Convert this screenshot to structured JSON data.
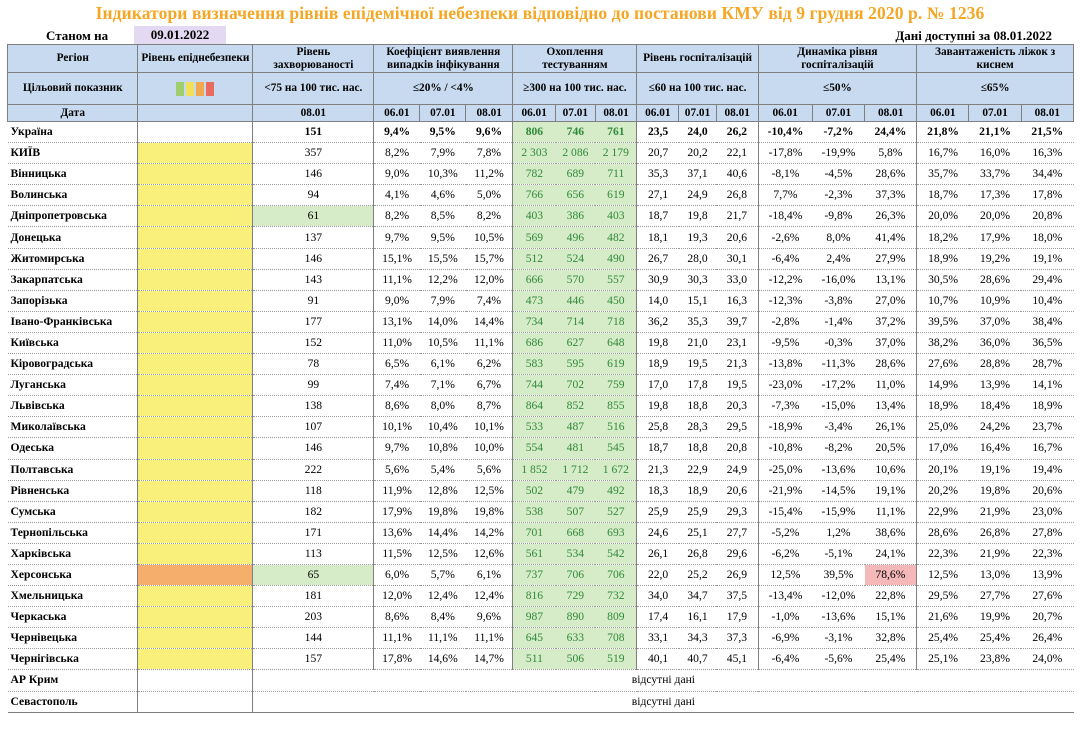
{
  "title": "Індикатори визначення рівнів епідемічної небезпеки відповідно до постанови КМУ від 9 грудня 2020 р. № 1236",
  "as_of_label": "Станом на",
  "as_of_date": "09.01.2022",
  "available_label": "Дані доступні за",
  "available_date": "08.01.2022",
  "headers": {
    "region": "Регіон",
    "level": "Рівень епіднебезпеки",
    "incidence": "Рівень захворюваності",
    "detection": "Коефіцієнт виявлення випадків інфікування",
    "testing": "Охоплення тестуванням",
    "hosp": "Рівень госпіталізацій",
    "hosp_dyn": "Динаміка рівня госпіталізацій",
    "oxygen": "Завантаженість ліжок з киснем"
  },
  "target": {
    "label": "Цільовий показник",
    "incidence": "<75 на 100 тис. нас.",
    "detection": "≤20% / <4%",
    "testing": "≥300 на 100 тис. нас.",
    "hosp": "≤60 на 100 тис. нас.",
    "hosp_dyn": "≤50%",
    "oxygen": "≤65%",
    "legend_colors": [
      "#9fcf6d",
      "#f3e05a",
      "#f2a84c",
      "#e96b5f"
    ]
  },
  "date_row": {
    "label": "Дата",
    "incidence": "08.01",
    "d1": "06.01",
    "d2": "07.01",
    "d3": "08.01"
  },
  "rows": [
    {
      "region": "Україна",
      "inc": "151",
      "det": [
        "9,4%",
        "9,5%",
        "9,6%"
      ],
      "test": [
        "806",
        "746",
        "761"
      ],
      "hosp": [
        "23,5",
        "24,0",
        "26,2"
      ],
      "dyn": [
        "-10,4%",
        "-7,2%",
        "24,4%"
      ],
      "oxy": [
        "21,8%",
        "21,1%",
        "21,5%"
      ]
    },
    {
      "region": "КИЇВ",
      "inc": "357",
      "det": [
        "8,2%",
        "7,9%",
        "7,8%"
      ],
      "test": [
        "2 303",
        "2 086",
        "2 179"
      ],
      "hosp": [
        "20,7",
        "20,2",
        "22,1"
      ],
      "dyn": [
        "-17,8%",
        "-19,9%",
        "5,8%"
      ],
      "oxy": [
        "16,7%",
        "16,0%",
        "16,3%"
      ]
    },
    {
      "region": "Вінницька",
      "inc": "146",
      "det": [
        "9,0%",
        "10,3%",
        "11,2%"
      ],
      "test": [
        "782",
        "689",
        "711"
      ],
      "hosp": [
        "35,3",
        "37,1",
        "40,6"
      ],
      "dyn": [
        "-8,1%",
        "-4,5%",
        "28,6%"
      ],
      "oxy": [
        "35,7%",
        "33,7%",
        "34,4%"
      ]
    },
    {
      "region": "Волинська",
      "inc": "94",
      "det": [
        "4,1%",
        "4,6%",
        "5,0%"
      ],
      "test": [
        "766",
        "656",
        "619"
      ],
      "hosp": [
        "27,1",
        "24,9",
        "26,8"
      ],
      "dyn": [
        "7,7%",
        "-2,3%",
        "37,3%"
      ],
      "oxy": [
        "18,7%",
        "17,3%",
        "17,8%"
      ]
    },
    {
      "region": "Дніпропетровська",
      "inc": "61",
      "det": [
        "8,2%",
        "8,5%",
        "8,2%"
      ],
      "test": [
        "403",
        "386",
        "403"
      ],
      "hosp": [
        "18,7",
        "19,8",
        "21,7"
      ],
      "dyn": [
        "-18,4%",
        "-9,8%",
        "26,3%"
      ],
      "oxy": [
        "20,0%",
        "20,0%",
        "20,8%"
      ]
    },
    {
      "region": "Донецька",
      "inc": "137",
      "det": [
        "9,7%",
        "9,5%",
        "10,5%"
      ],
      "test": [
        "569",
        "496",
        "482"
      ],
      "hosp": [
        "18,1",
        "19,3",
        "20,6"
      ],
      "dyn": [
        "-2,6%",
        "8,0%",
        "41,4%"
      ],
      "oxy": [
        "18,2%",
        "17,9%",
        "18,0%"
      ]
    },
    {
      "region": "Житомирська",
      "inc": "146",
      "det": [
        "15,1%",
        "15,5%",
        "15,7%"
      ],
      "test": [
        "512",
        "524",
        "490"
      ],
      "hosp": [
        "26,7",
        "28,0",
        "30,1"
      ],
      "dyn": [
        "-6,4%",
        "2,4%",
        "27,9%"
      ],
      "oxy": [
        "18,9%",
        "19,2%",
        "19,1%"
      ]
    },
    {
      "region": "Закарпатська",
      "inc": "143",
      "det": [
        "11,1%",
        "12,2%",
        "12,0%"
      ],
      "test": [
        "666",
        "570",
        "557"
      ],
      "hosp": [
        "30,9",
        "30,3",
        "33,0"
      ],
      "dyn": [
        "-12,2%",
        "-16,0%",
        "13,1%"
      ],
      "oxy": [
        "30,5%",
        "28,6%",
        "29,4%"
      ]
    },
    {
      "region": "Запорізька",
      "inc": "91",
      "det": [
        "9,0%",
        "7,9%",
        "7,4%"
      ],
      "test": [
        "473",
        "446",
        "450"
      ],
      "hosp": [
        "14,0",
        "15,1",
        "16,3"
      ],
      "dyn": [
        "-12,3%",
        "-3,8%",
        "27,0%"
      ],
      "oxy": [
        "10,7%",
        "10,9%",
        "10,4%"
      ]
    },
    {
      "region": "Івано-Франківська",
      "inc": "177",
      "det": [
        "13,1%",
        "14,0%",
        "14,4%"
      ],
      "test": [
        "734",
        "714",
        "718"
      ],
      "hosp": [
        "36,2",
        "35,3",
        "39,7"
      ],
      "dyn": [
        "-2,8%",
        "-1,4%",
        "37,2%"
      ],
      "oxy": [
        "39,5%",
        "37,0%",
        "38,4%"
      ]
    },
    {
      "region": "Київська",
      "inc": "152",
      "det": [
        "11,0%",
        "10,5%",
        "11,1%"
      ],
      "test": [
        "686",
        "627",
        "648"
      ],
      "hosp": [
        "19,8",
        "21,0",
        "23,1"
      ],
      "dyn": [
        "-9,5%",
        "-0,3%",
        "37,0%"
      ],
      "oxy": [
        "38,2%",
        "36,0%",
        "36,5%"
      ]
    },
    {
      "region": "Кіровоградська",
      "inc": "78",
      "det": [
        "6,5%",
        "6,1%",
        "6,2%"
      ],
      "test": [
        "583",
        "595",
        "619"
      ],
      "hosp": [
        "18,9",
        "19,5",
        "21,3"
      ],
      "dyn": [
        "-13,8%",
        "-11,3%",
        "28,6%"
      ],
      "oxy": [
        "27,6%",
        "28,8%",
        "28,7%"
      ]
    },
    {
      "region": "Луганська",
      "inc": "99",
      "det": [
        "7,4%",
        "7,1%",
        "6,7%"
      ],
      "test": [
        "744",
        "702",
        "759"
      ],
      "hosp": [
        "17,0",
        "17,8",
        "19,5"
      ],
      "dyn": [
        "-23,0%",
        "-17,2%",
        "11,0%"
      ],
      "oxy": [
        "14,9%",
        "13,9%",
        "14,1%"
      ]
    },
    {
      "region": "Львівська",
      "inc": "138",
      "det": [
        "8,6%",
        "8,0%",
        "8,7%"
      ],
      "test": [
        "864",
        "852",
        "855"
      ],
      "hosp": [
        "19,8",
        "18,8",
        "20,3"
      ],
      "dyn": [
        "-7,3%",
        "-15,0%",
        "13,4%"
      ],
      "oxy": [
        "18,9%",
        "18,4%",
        "18,9%"
      ]
    },
    {
      "region": "Миколаївська",
      "inc": "107",
      "det": [
        "10,1%",
        "10,4%",
        "10,1%"
      ],
      "test": [
        "533",
        "487",
        "516"
      ],
      "hosp": [
        "25,8",
        "28,3",
        "29,5"
      ],
      "dyn": [
        "-18,9%",
        "-3,4%",
        "26,1%"
      ],
      "oxy": [
        "25,0%",
        "24,2%",
        "23,7%"
      ]
    },
    {
      "region": "Одеська",
      "inc": "146",
      "det": [
        "9,7%",
        "10,8%",
        "10,0%"
      ],
      "test": [
        "554",
        "481",
        "545"
      ],
      "hosp": [
        "18,7",
        "18,8",
        "20,8"
      ],
      "dyn": [
        "-10,8%",
        "-8,2%",
        "20,5%"
      ],
      "oxy": [
        "17,0%",
        "16,4%",
        "16,7%"
      ]
    },
    {
      "region": "Полтавська",
      "inc": "222",
      "det": [
        "5,6%",
        "5,4%",
        "5,6%"
      ],
      "test": [
        "1 852",
        "1 712",
        "1 672"
      ],
      "hosp": [
        "21,3",
        "22,9",
        "24,9"
      ],
      "dyn": [
        "-25,0%",
        "-13,6%",
        "10,6%"
      ],
      "oxy": [
        "20,1%",
        "19,1%",
        "19,4%"
      ]
    },
    {
      "region": "Рівненська",
      "inc": "118",
      "det": [
        "11,9%",
        "12,8%",
        "12,5%"
      ],
      "test": [
        "502",
        "479",
        "492"
      ],
      "hosp": [
        "18,3",
        "18,9",
        "20,6"
      ],
      "dyn": [
        "-21,9%",
        "-14,5%",
        "19,1%"
      ],
      "oxy": [
        "20,2%",
        "19,8%",
        "20,6%"
      ]
    },
    {
      "region": "Сумська",
      "inc": "182",
      "det": [
        "17,9%",
        "19,8%",
        "19,8%"
      ],
      "test": [
        "538",
        "507",
        "527"
      ],
      "hosp": [
        "25,9",
        "25,9",
        "29,3"
      ],
      "dyn": [
        "-15,4%",
        "-15,9%",
        "11,1%"
      ],
      "oxy": [
        "22,9%",
        "21,9%",
        "23,0%"
      ]
    },
    {
      "region": "Тернопільська",
      "inc": "171",
      "det": [
        "13,6%",
        "14,4%",
        "14,2%"
      ],
      "test": [
        "701",
        "668",
        "693"
      ],
      "hosp": [
        "24,6",
        "25,1",
        "27,7"
      ],
      "dyn": [
        "-5,2%",
        "1,2%",
        "38,6%"
      ],
      "oxy": [
        "28,6%",
        "26,8%",
        "27,8%"
      ]
    },
    {
      "region": "Харківська",
      "inc": "113",
      "det": [
        "11,5%",
        "12,5%",
        "12,6%"
      ],
      "test": [
        "561",
        "534",
        "542"
      ],
      "hosp": [
        "26,1",
        "26,8",
        "29,6"
      ],
      "dyn": [
        "-6,2%",
        "-5,1%",
        "24,1%"
      ],
      "oxy": [
        "22,3%",
        "21,9%",
        "22,3%"
      ]
    },
    {
      "region": "Херсонська",
      "inc": "65",
      "det": [
        "6,0%",
        "5,7%",
        "6,1%"
      ],
      "test": [
        "737",
        "706",
        "706"
      ],
      "hosp": [
        "22,0",
        "25,2",
        "26,9"
      ],
      "dyn": [
        "12,5%",
        "39,5%",
        "78,6%"
      ],
      "oxy": [
        "12,5%",
        "13,0%",
        "13,9%"
      ]
    },
    {
      "region": "Хмельницька",
      "inc": "181",
      "det": [
        "12,0%",
        "12,4%",
        "12,4%"
      ],
      "test": [
        "816",
        "729",
        "732"
      ],
      "hosp": [
        "34,0",
        "34,7",
        "37,5"
      ],
      "dyn": [
        "-13,4%",
        "-12,0%",
        "22,8%"
      ],
      "oxy": [
        "29,5%",
        "27,7%",
        "27,6%"
      ]
    },
    {
      "region": "Черкаська",
      "inc": "203",
      "det": [
        "8,6%",
        "8,4%",
        "9,6%"
      ],
      "test": [
        "987",
        "890",
        "809"
      ],
      "hosp": [
        "17,4",
        "16,1",
        "17,9"
      ],
      "dyn": [
        "-1,0%",
        "-13,6%",
        "15,1%"
      ],
      "oxy": [
        "21,6%",
        "19,9%",
        "20,7%"
      ]
    },
    {
      "region": "Чернівецька",
      "inc": "144",
      "det": [
        "11,1%",
        "11,1%",
        "11,1%"
      ],
      "test": [
        "645",
        "633",
        "708"
      ],
      "hosp": [
        "33,1",
        "34,3",
        "37,3"
      ],
      "dyn": [
        "-6,9%",
        "-3,1%",
        "32,8%"
      ],
      "oxy": [
        "25,4%",
        "25,4%",
        "26,4%"
      ]
    },
    {
      "region": "Чернігівська",
      "inc": "157",
      "det": [
        "17,8%",
        "14,6%",
        "14,7%"
      ],
      "test": [
        "511",
        "506",
        "519"
      ],
      "hosp": [
        "40,1",
        "40,7",
        "45,1"
      ],
      "dyn": [
        "-6,4%",
        "-5,6%",
        "25,4%"
      ],
      "oxy": [
        "25,1%",
        "23,8%",
        "24,0%"
      ]
    }
  ],
  "missing_rows": [
    {
      "region": "АР Крим",
      "text": "відсутні дані"
    },
    {
      "region": "Севастополь",
      "text": "відсутні дані"
    }
  ]
}
